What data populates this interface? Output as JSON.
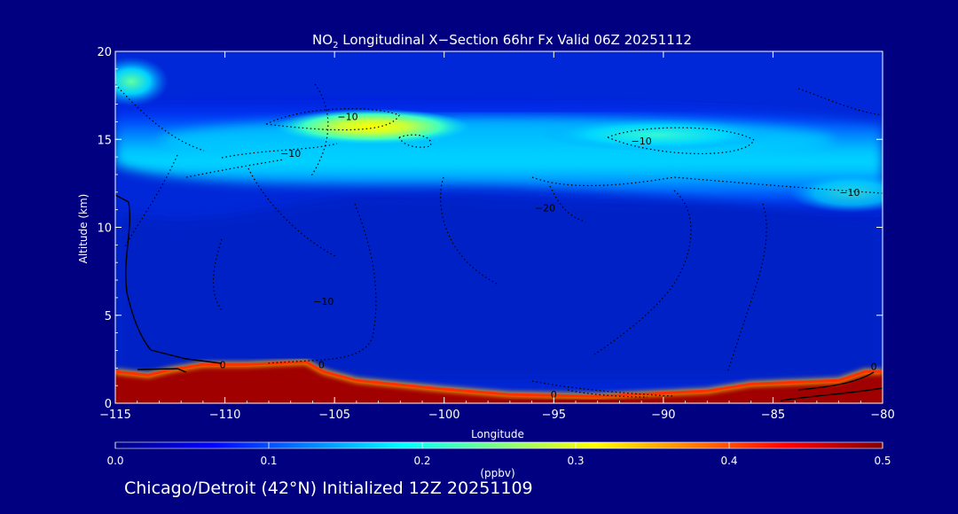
{
  "chart_data": {
    "type": "heatmap",
    "title": {
      "prefix": "NO",
      "subscript": "2",
      "rest": " Longitudinal X−Section 66hr  Fx Valid 06Z 20251112"
    },
    "xlabel": "Longitude",
    "ylabel": "Altitude (km)",
    "xlim": [
      -115,
      -80
    ],
    "ylim": [
      0,
      20
    ],
    "x_ticks": [
      -115,
      -110,
      -105,
      -100,
      -95,
      -90,
      -85,
      -80
    ],
    "x_tick_labels": [
      "−115",
      "−110",
      "−105",
      "−100",
      "−95",
      "−90",
      "−85",
      "−80"
    ],
    "y_ticks": [
      0,
      5,
      10,
      15,
      20
    ],
    "y_tick_labels": [
      "0",
      "5",
      "10",
      "15",
      "20"
    ],
    "colorbar": {
      "label": "(ppbv)",
      "min": 0.0,
      "max": 0.5,
      "ticks": [
        0.0,
        0.1,
        0.2,
        0.3,
        0.4,
        0.5
      ],
      "tick_labels": [
        "0.0",
        "0.1",
        "0.2",
        "0.3",
        "0.4",
        "0.5"
      ],
      "colors": [
        "#000080",
        "#0000ff",
        "#0080ff",
        "#00ffff",
        "#80ff80",
        "#ffff00",
        "#ff8000",
        "#ff0000",
        "#800000"
      ]
    },
    "field_description": {
      "upper_band_peak_ppbv": 0.32,
      "upper_band_altitude_km": 15.5,
      "surface_max_ppbv": 0.5
    },
    "terrain_km": [
      [
        -115,
        1.8
      ],
      [
        -113.5,
        1.6
      ],
      [
        -112.5,
        1.9
      ],
      [
        -111,
        2.2
      ],
      [
        -109,
        2.2
      ],
      [
        -106.3,
        2.35
      ],
      [
        -105.5,
        1.8
      ],
      [
        -104,
        1.3
      ],
      [
        -100,
        0.8
      ],
      [
        -97,
        0.5
      ],
      [
        -93,
        0.4
      ],
      [
        -88,
        0.7
      ],
      [
        -86,
        1.1
      ],
      [
        -82,
        1.3
      ],
      [
        -80.8,
        1.8
      ],
      [
        -80,
        1.8
      ]
    ],
    "contour_labels": [
      {
        "text": "−10",
        "lon": -104.4,
        "alt": 16.3
      },
      {
        "text": "−10",
        "lon": -107.0,
        "alt": 14.2
      },
      {
        "text": "−10",
        "lon": -91.0,
        "alt": 14.9
      },
      {
        "text": "−10",
        "lon": -81.5,
        "alt": 12.0
      },
      {
        "text": "−20",
        "lon": -95.4,
        "alt": 11.1
      },
      {
        "text": "−10",
        "lon": -105.5,
        "alt": 5.8
      },
      {
        "text": "0",
        "lon": -110.1,
        "alt": 2.2
      },
      {
        "text": "0",
        "lon": -105.6,
        "alt": 2.2
      },
      {
        "text": "0",
        "lon": -80.4,
        "alt": 2.1
      },
      {
        "text": "0",
        "lon": -95.0,
        "alt": 0.5
      }
    ]
  },
  "footer": "Chicago/Detroit (42°N) Initialized 12Z 20251109"
}
